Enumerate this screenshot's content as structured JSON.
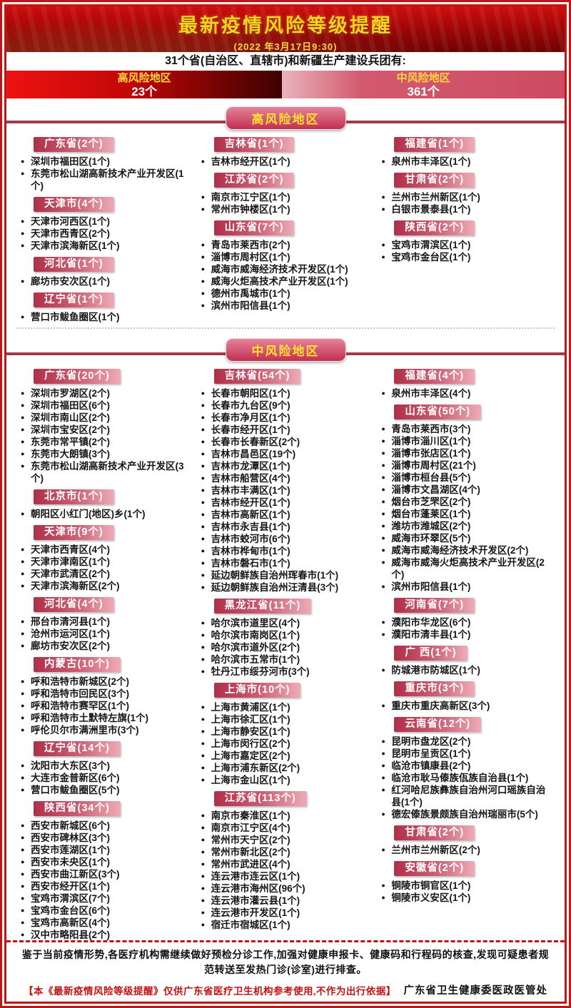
{
  "header": {
    "title": "最新疫情风险等级提醒",
    "date": "(2022 年3月17日9:30)",
    "subtitle": "31个省(自治区、直辖市)和新疆生产建设兵团有:"
  },
  "banner": {
    "high": {
      "label": "高风险地区",
      "count": "23个"
    },
    "mid": {
      "label": "中风险地区",
      "count": "361个"
    }
  },
  "colors": {
    "frame_red": "#c01515",
    "banner_dark_red": "#a30707",
    "gold_text": "#ffd21e",
    "high_count_red": "#c10707",
    "mid_count_pink": "#ce4b61",
    "section_pill_rose": "#c22e50",
    "province_pill_rose": "#ae3049",
    "footer_red": "#c41212"
  },
  "sections": [
    {
      "id": "high",
      "title": "高风险地区",
      "columns": [
        [
          {
            "label": "广东省(2个)",
            "items": [
              "深圳市福田区(1个)",
              "东莞市松山湖高新技术产业开发区(1个)"
            ]
          },
          {
            "label": "天津市(4个)",
            "items": [
              "天津市河西区(1个)",
              "天津市西青区(2个)",
              "天津市滨海新区(1个)"
            ]
          },
          {
            "label": "河北省(1个)",
            "items": [
              "廊坊市安次区(1个)"
            ]
          },
          {
            "label": "辽宁省(1个)",
            "items": [
              "营口市鲅鱼圈区(1个)"
            ]
          }
        ],
        [
          {
            "label": "吉林省(1个)",
            "items": [
              "吉林市经开区(1个)"
            ]
          },
          {
            "label": "江苏省(2个)",
            "items": [
              "南京市江宁区(1个)",
              "常州市钟楼区(1个)"
            ]
          },
          {
            "label": "山东省(7个)",
            "items": [
              "青岛市莱西市(2个)",
              "淄博市周村区(1个)",
              "威海市威海经济技术开发区(1个)",
              "威海火炬高技术产业开发区(1个)",
              "德州市禹城市(1个)",
              "滨州市阳信县(1个)"
            ]
          }
        ],
        [
          {
            "label": "福建省(1个)",
            "items": [
              "泉州市丰泽区(1个)"
            ]
          },
          {
            "label": "甘肃省(2个)",
            "items": [
              "兰州市兰州新区(1个)",
              "白银市景泰县(1个)"
            ]
          },
          {
            "label": "陕西省(2个)",
            "items": [
              "宝鸡市渭滨区(1个)",
              "宝鸡市金台区(1个)"
            ]
          }
        ]
      ]
    },
    {
      "id": "mid",
      "title": "中风险地区",
      "columns": [
        [
          {
            "label": "广东省(20个)",
            "items": [
              "深圳市罗湖区(2个)",
              "深圳市福田区(6个)",
              "深圳市南山区(2个)",
              "深圳市宝安区(2个)",
              "东莞市常平镇(2个)",
              "东莞市大朗镇(3个)",
              "东莞市松山湖高新技术产业开发区(3个)"
            ]
          },
          {
            "label": "北京市(1个)",
            "items": [
              "朝阳区小红门(地区)乡(1个)"
            ]
          },
          {
            "label": "天津市(9个)",
            "items": [
              "天津市西青区(4个)",
              "天津市津南区(1个)",
              "天津市武清区(2个)",
              "天津市滨海新区(2个)"
            ]
          },
          {
            "label": "河北省(4个)",
            "items": [
              "邢台市清河县(1个)",
              "沧州市运河区(1个)",
              "廊坊市安次区(2个)"
            ]
          },
          {
            "label": "内蒙古(10个)",
            "items": [
              "呼和浩特市新城区(2个)",
              "呼和浩特市回民区(3个)",
              "呼和浩特市赛罕区(1个)",
              "呼和浩特市土默特左旗(1个)",
              "呼伦贝尔市满洲里市(3个)"
            ]
          },
          {
            "label": "辽宁省(14个)",
            "items": [
              "沈阳市大东区(3个)",
              "大连市金普新区(6个)",
              "营口市鲅鱼圈区(5个)"
            ]
          },
          {
            "label": "陕西省(34个)",
            "items": [
              "西安市新城区(6个)",
              "西安市碑林区(3个)",
              "西安市莲湖区(1个)",
              "西安市未央区(1个)",
              "西安市曲江新区(3个)",
              "西安市经开区(1个)",
              "宝鸡市渭滨区(7个)",
              "宝鸡市金台区(6个)",
              "宝鸡市高新区(4个)",
              "汉中市略阳县(2个)"
            ]
          }
        ],
        [
          {
            "label": "吉林省(54个)",
            "items": [
              "长春市朝阳区(1个)",
              "长春市九台区(9个)",
              "长春市净月区(1个)",
              "长春市经开区(1个)",
              "长春市长春新区(2个)",
              "吉林市昌邑区(19个)",
              "吉林市龙潭区(1个)",
              "吉林市船营区(4个)",
              "吉林市丰满区(1个)",
              "吉林市经开区(1个)",
              "吉林市高新区(1个)",
              "吉林市永吉县(1个)",
              "吉林市蛟河市(6个)",
              "吉林市桦甸市(1个)",
              "吉林市磐石市(1个)",
              "延边朝鲜族自治州珲春市(1个)",
              "延边朝鲜族自治州汪清县(3个)"
            ]
          },
          {
            "label": "黑龙江省(11个)",
            "items": [
              "哈尔滨市道里区(4个)",
              "哈尔滨市南岗区(1个)",
              "哈尔滨市道外区(2个)",
              "哈尔滨市五常市(1个)",
              "牡丹江市绥芬河市(3个)"
            ]
          },
          {
            "label": "上海市(10个)",
            "items": [
              "上海市黄浦区(1个)",
              "上海市徐汇区(1个)",
              "上海市静安区(1个)",
              "上海市闵行区(2个)",
              "上海市嘉定区(2个)",
              "上海市浦东新区(2个)",
              "上海市金山区(1个)"
            ]
          },
          {
            "label": "江苏省(113个)",
            "items": [
              "南京市秦淮区(1个)",
              "南京市江宁区(4个)",
              "常州市天宁区(2个)",
              "常州市新北区(2个)",
              "常州市武进区(4个)",
              "连云港市连云区(1个)",
              "连云港市海州区(96个)",
              "连云港市灌云县(1个)",
              "连云港市开发区(1个)",
              "宿迁市宿城区(1个)"
            ]
          }
        ],
        [
          {
            "label": "福建省(4个)",
            "items": [
              "泉州市丰泽区(4个)"
            ]
          },
          {
            "label": "山东省(50个)",
            "items": [
              "青岛市莱西市(3个)",
              "淄博市淄川区(1个)",
              "淄博市张店区(1个)",
              "淄博市周村区(21个)",
              "淄博市桓台县(5个)",
              "淄博市文昌湖区(4个)",
              "烟台市芝罘区(2个)",
              "烟台市蓬莱区(1个)",
              "潍坊市潍城区(2个)",
              "威海市环翠区(5个)",
              "威海市威海经济技术开发区(2个)",
              "威海市威海火炬高技术产业开发区(2个)",
              "滨州市阳信县(1个)"
            ]
          },
          {
            "label": "河南省(7个)",
            "items": [
              "濮阳市华龙区(6个)",
              "濮阳市清丰县(1个)"
            ]
          },
          {
            "label": "广 西(1个)",
            "items": [
              "防城港市防城区(1个)"
            ]
          },
          {
            "label": "重庆市(3个)",
            "items": [
              "重庆市重庆高新区(3个)"
            ]
          },
          {
            "label": "云南省(12个)",
            "items": [
              "昆明市盘龙区(2个)",
              "昆明市呈贡区(1个)",
              "临沧市镇康县(2个)",
              "临沧市耿马傣族佤族自治县(1个)",
              "红河哈尼族彝族自治州河口瑶族自治县(1个)",
              "德宏傣族景颇族自治州瑞丽市(5个)"
            ]
          },
          {
            "label": "甘肃省(2个)",
            "items": [
              "兰州市兰州新区(2个)"
            ]
          },
          {
            "label": "安徽省(2个)",
            "items": [
              "铜陵市铜官区(1个)",
              "铜陵市义安区(1个)"
            ]
          }
        ]
      ]
    }
  ],
  "footer": {
    "notice": "鉴于当前疫情形势,各医疗机构需继续做好预检分诊工作,加强对健康申报卡、健康码和行程码的核查,发现可疑患者规范转送至发热门诊(诊室)进行排查。",
    "disclaimer": "【本《最新疫情风险等级提醒》仅供广东省医疗卫生机构参考使用,不作为出行依据】",
    "issuer": "广东省卫生健康委医政医管处"
  }
}
